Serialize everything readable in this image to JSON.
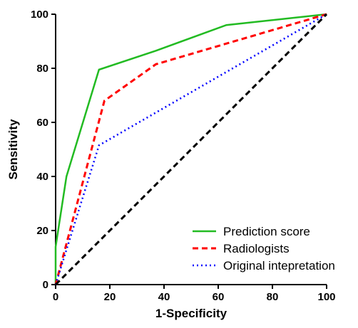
{
  "chart_data": {
    "type": "line",
    "xlabel": "1-Specificity",
    "ylabel": "Sensitivity",
    "xlim": [
      0,
      100
    ],
    "ylim": [
      0,
      100
    ],
    "xticks": [
      "0",
      "20",
      "40",
      "60",
      "80",
      "100"
    ],
    "yticks": [
      "0",
      "20",
      "40",
      "60",
      "80",
      "100"
    ],
    "grid": false,
    "legend_position": "bottom-right",
    "series": [
      {
        "name": "Prediction score",
        "color": "#22bb22",
        "style": "solid",
        "points": [
          [
            0,
            0
          ],
          [
            0,
            14
          ],
          [
            4,
            40
          ],
          [
            16,
            79.5
          ],
          [
            37,
            86.5
          ],
          [
            63,
            96
          ],
          [
            100,
            100
          ]
        ]
      },
      {
        "name": "Radiologists",
        "color": "#ff0000",
        "style": "dashed",
        "points": [
          [
            0,
            0
          ],
          [
            18,
            68
          ],
          [
            37,
            81.5
          ],
          [
            100,
            100
          ]
        ]
      },
      {
        "name": "Original intepretation",
        "color": "#0000ff",
        "style": "dotted",
        "points": [
          [
            0,
            0
          ],
          [
            16,
            51.5
          ],
          [
            100,
            100
          ]
        ]
      },
      {
        "color": "#000000",
        "style": "dashed",
        "points": [
          [
            0,
            0
          ],
          [
            100,
            100
          ]
        ]
      }
    ]
  }
}
